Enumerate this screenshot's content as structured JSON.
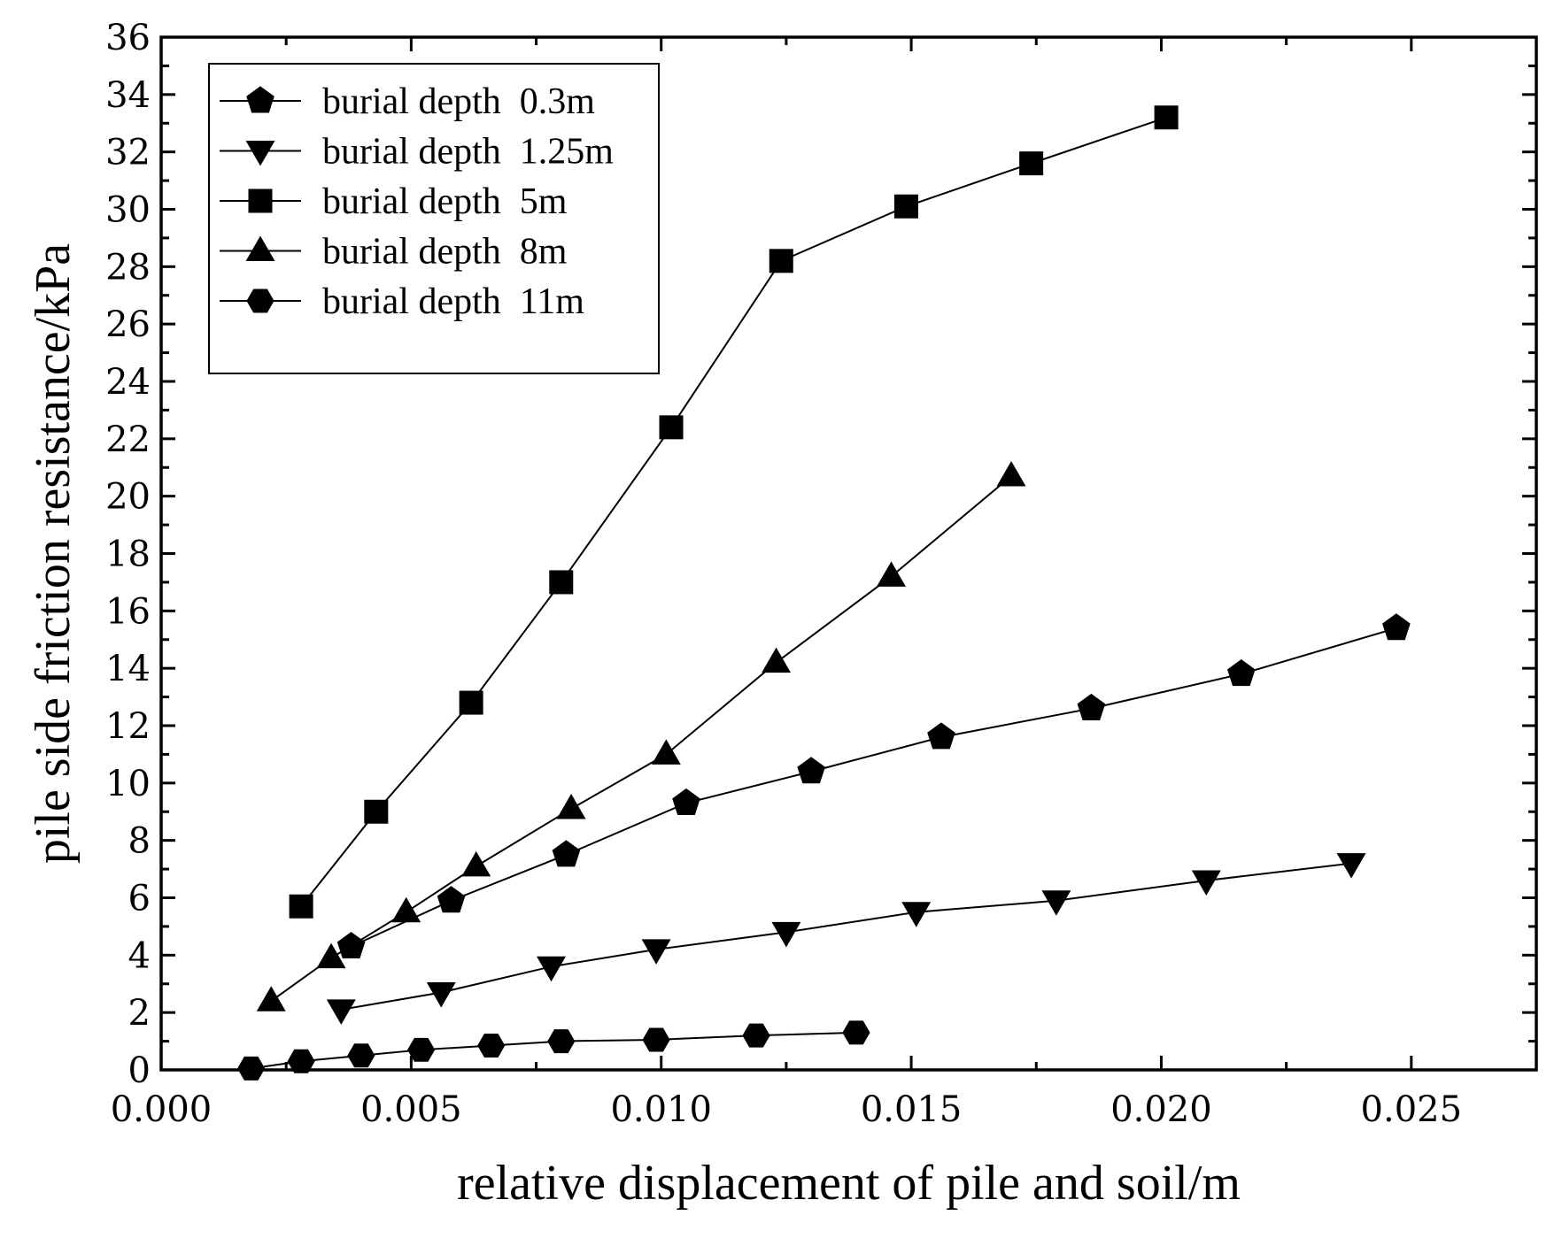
{
  "chart_data": {
    "type": "line",
    "title": "",
    "xlabel": "relative displacement of pile and soil/m",
    "ylabel": "pile side friction resistance/kPa",
    "xlim": [
      0,
      0.0275
    ],
    "ylim": [
      0,
      36
    ],
    "x_ticks": [
      "0.000",
      "0.005",
      "0.010",
      "0.015",
      "0.020",
      "0.025"
    ],
    "y_ticks": [
      "0",
      "2",
      "4",
      "6",
      "8",
      "10",
      "12",
      "14",
      "16",
      "18",
      "20",
      "22",
      "24",
      "26",
      "28",
      "30",
      "32",
      "34",
      "36"
    ],
    "legend_position": "top-left",
    "grid": false,
    "series": [
      {
        "name": "burial depth  0.3m",
        "marker": "pentagon",
        "x": [
          0.0038,
          0.0058,
          0.0081,
          0.0105,
          0.013,
          0.0156,
          0.0186,
          0.0216,
          0.0247
        ],
        "y": [
          4.3,
          5.9,
          7.5,
          9.3,
          10.4,
          11.6,
          12.6,
          13.8,
          15.4
        ]
      },
      {
        "name": "burial depth  1.25m",
        "marker": "triangle-down",
        "x": [
          0.0036,
          0.0056,
          0.0078,
          0.0099,
          0.0125,
          0.0151,
          0.0179,
          0.0209,
          0.0238
        ],
        "y": [
          2.1,
          2.7,
          3.6,
          4.2,
          4.8,
          5.5,
          5.9,
          6.6,
          7.2
        ]
      },
      {
        "name": "burial depth  5m",
        "marker": "square",
        "x": [
          0.0028,
          0.0043,
          0.0062,
          0.008,
          0.0102,
          0.0124,
          0.0149,
          0.0174,
          0.0201
        ],
        "y": [
          5.7,
          9.0,
          12.8,
          17.0,
          22.4,
          28.2,
          30.1,
          31.6,
          33.2
        ]
      },
      {
        "name": "burial depth  8m",
        "marker": "triangle-up",
        "x": [
          0.0022,
          0.0034,
          0.0049,
          0.0063,
          0.0082,
          0.0101,
          0.0123,
          0.0146,
          0.017
        ],
        "y": [
          2.4,
          3.9,
          5.5,
          7.1,
          9.1,
          11.0,
          14.2,
          17.2,
          20.7
        ]
      },
      {
        "name": "burial depth  11m",
        "marker": "hexagon",
        "x": [
          0.0018,
          0.0028,
          0.004,
          0.0052,
          0.0066,
          0.008,
          0.0099,
          0.0119,
          0.0139
        ],
        "y": [
          0.05,
          0.3,
          0.5,
          0.7,
          0.85,
          1.0,
          1.05,
          1.2,
          1.3
        ]
      }
    ]
  }
}
